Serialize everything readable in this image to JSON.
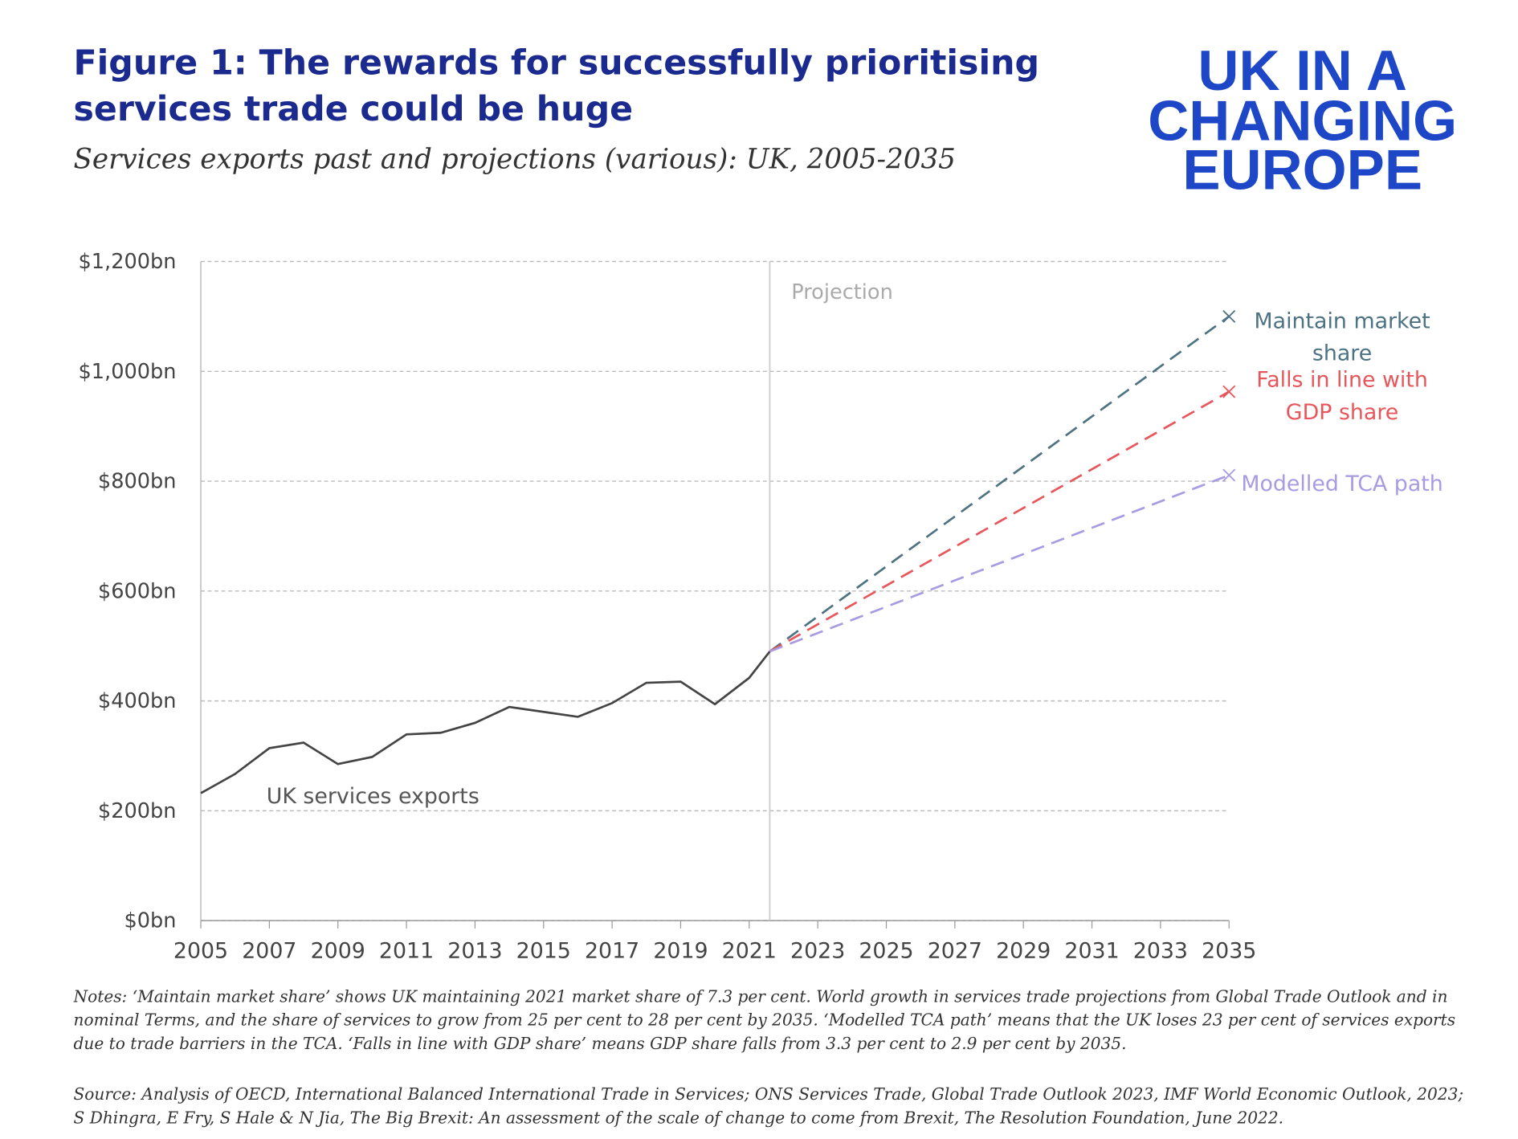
{
  "header": {
    "title": "Figure 1: The rewards for successfully prioritising services trade could be huge",
    "subtitle": "Services exports past and projections (various): UK, 2005-2035",
    "logo": [
      "UK IN A",
      "CHANGING",
      "EUROPE"
    ]
  },
  "chart_data": {
    "type": "line",
    "projection_label": "Projection",
    "projection_x": 2021.6,
    "series": [
      {
        "name": "UK services exports",
        "color": "#444444",
        "dashed": false,
        "x": [
          2005,
          2006,
          2007,
          2008,
          2009,
          2010,
          2011,
          2012,
          2013,
          2014,
          2015,
          2016,
          2017,
          2018,
          2019,
          2020,
          2021,
          2021.6
        ],
        "values": [
          232,
          267,
          314,
          324,
          285,
          298,
          339,
          342,
          360,
          389,
          380,
          371,
          396,
          433,
          435,
          394,
          442,
          490
        ]
      },
      {
        "name": "Maintain market share",
        "color": "#4d7282",
        "dashed": true,
        "x": [
          2021.6,
          2035
        ],
        "values": [
          490,
          1100
        ]
      },
      {
        "name": "Falls in line with GDP share",
        "color": "#e8565b",
        "dashed": true,
        "x": [
          2021.6,
          2035
        ],
        "values": [
          490,
          963
        ]
      },
      {
        "name": "Modelled TCA path",
        "color": "#a99be2",
        "dashed": true,
        "x": [
          2021.6,
          2035
        ],
        "values": [
          490,
          811
        ]
      }
    ],
    "xlim": [
      2005,
      2035
    ],
    "xticks": [
      2005,
      2007,
      2009,
      2011,
      2013,
      2015,
      2017,
      2019,
      2021,
      2023,
      2025,
      2027,
      2029,
      2031,
      2033,
      2035
    ],
    "ylim": [
      0,
      1200
    ],
    "yticks": [
      {
        "value": 0,
        "label": "$0bn"
      },
      {
        "value": 200,
        "label": "$200bn"
      },
      {
        "value": 400,
        "label": "$400bn"
      },
      {
        "value": 600,
        "label": "$600bn"
      },
      {
        "value": 800,
        "label": "$800bn"
      },
      {
        "value": 1000,
        "label": "$1,000bn"
      },
      {
        "value": 1200,
        "label": "$1,200bn"
      }
    ],
    "grid": true
  },
  "notes": "Notes: ‘Maintain market share’ shows UK maintaining 2021 market share of 7.3 per cent. World growth in services trade projections from Global Trade Outlook and in nominal Terms, and the share of services to grow from 25 per cent to 28 per cent by 2035. ‘Modelled TCA path’ means that the UK loses 23 per cent of services exports due to trade barriers in the TCA. ‘Falls in line with GDP share’ means GDP share falls from 3.3 per cent to 2.9 per cent by 2035.",
  "source": "Source: Analysis of OECD, International Balanced International Trade in Services; ONS Services Trade, Global Trade Outlook 2023, IMF World Economic Outlook, 2023; S Dhingra, E Fry, S Hale & N Jia, The Big Brexit: An assessment of the scale of change to come from Brexit, The Resolution Foundation, June 2022."
}
